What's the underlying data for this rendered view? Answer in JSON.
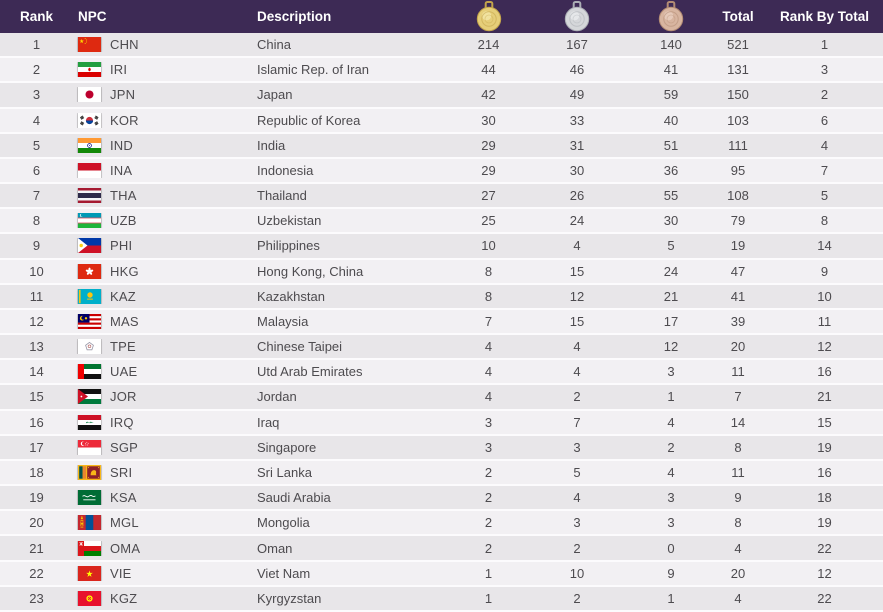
{
  "theme": {
    "header_bg": "#3d2a55",
    "header_text": "#ffffff",
    "row_odd_bg": "#e8e6e9",
    "row_even_bg": "#f2f0f3",
    "row_separator": "#fcfbfd",
    "text_color": "#4d4b4f",
    "medals": {
      "gold": {
        "body": "#e6ce79",
        "ring": "#c3a44b",
        "hi": "#f8ecb4"
      },
      "silver": {
        "body": "#d5d7da",
        "ring": "#abaeb4",
        "hi": "#f0f1f3"
      },
      "bronze": {
        "body": "#d8b5a0",
        "ring": "#b38c74",
        "hi": "#eed6c7"
      }
    }
  },
  "table": {
    "header": {
      "rank": "Rank",
      "npc": "NPC",
      "description": "Description",
      "gold_icon": "gold-medal-icon",
      "silver_icon": "silver-medal-icon",
      "bronze_icon": "bronze-medal-icon",
      "total": "Total",
      "rank_by_total": "Rank By Total"
    },
    "rows": [
      {
        "rank": 1,
        "npc": "CHN",
        "flag_icon": "flag-chn-icon",
        "description": "China",
        "gold": 214,
        "silver": 167,
        "bronze": 140,
        "total": 521,
        "rank_by_total": 1
      },
      {
        "rank": 2,
        "npc": "IRI",
        "flag_icon": "flag-iri-icon",
        "description": "Islamic Rep. of Iran",
        "gold": 44,
        "silver": 46,
        "bronze": 41,
        "total": 131,
        "rank_by_total": 3
      },
      {
        "rank": 3,
        "npc": "JPN",
        "flag_icon": "flag-jpn-icon",
        "description": "Japan",
        "gold": 42,
        "silver": 49,
        "bronze": 59,
        "total": 150,
        "rank_by_total": 2
      },
      {
        "rank": 4,
        "npc": "KOR",
        "flag_icon": "flag-kor-icon",
        "description": "Republic of Korea",
        "gold": 30,
        "silver": 33,
        "bronze": 40,
        "total": 103,
        "rank_by_total": 6
      },
      {
        "rank": 5,
        "npc": "IND",
        "flag_icon": "flag-ind-icon",
        "description": "India",
        "gold": 29,
        "silver": 31,
        "bronze": 51,
        "total": 111,
        "rank_by_total": 4
      },
      {
        "rank": 6,
        "npc": "INA",
        "flag_icon": "flag-ina-icon",
        "description": "Indonesia",
        "gold": 29,
        "silver": 30,
        "bronze": 36,
        "total": 95,
        "rank_by_total": 7
      },
      {
        "rank": 7,
        "npc": "THA",
        "flag_icon": "flag-tha-icon",
        "description": "Thailand",
        "gold": 27,
        "silver": 26,
        "bronze": 55,
        "total": 108,
        "rank_by_total": 5
      },
      {
        "rank": 8,
        "npc": "UZB",
        "flag_icon": "flag-uzb-icon",
        "description": "Uzbekistan",
        "gold": 25,
        "silver": 24,
        "bronze": 30,
        "total": 79,
        "rank_by_total": 8
      },
      {
        "rank": 9,
        "npc": "PHI",
        "flag_icon": "flag-phi-icon",
        "description": "Philippines",
        "gold": 10,
        "silver": 4,
        "bronze": 5,
        "total": 19,
        "rank_by_total": 14
      },
      {
        "rank": 10,
        "npc": "HKG",
        "flag_icon": "flag-hkg-icon",
        "description": "Hong Kong, China",
        "gold": 8,
        "silver": 15,
        "bronze": 24,
        "total": 47,
        "rank_by_total": 9
      },
      {
        "rank": 11,
        "npc": "KAZ",
        "flag_icon": "flag-kaz-icon",
        "description": "Kazakhstan",
        "gold": 8,
        "silver": 12,
        "bronze": 21,
        "total": 41,
        "rank_by_total": 10
      },
      {
        "rank": 12,
        "npc": "MAS",
        "flag_icon": "flag-mas-icon",
        "description": "Malaysia",
        "gold": 7,
        "silver": 15,
        "bronze": 17,
        "total": 39,
        "rank_by_total": 11
      },
      {
        "rank": 13,
        "npc": "TPE",
        "flag_icon": "flag-tpe-icon",
        "description": "Chinese Taipei",
        "gold": 4,
        "silver": 4,
        "bronze": 12,
        "total": 20,
        "rank_by_total": 12
      },
      {
        "rank": 14,
        "npc": "UAE",
        "flag_icon": "flag-uae-icon",
        "description": "Utd Arab Emirates",
        "gold": 4,
        "silver": 4,
        "bronze": 3,
        "total": 11,
        "rank_by_total": 16
      },
      {
        "rank": 15,
        "npc": "JOR",
        "flag_icon": "flag-jor-icon",
        "description": "Jordan",
        "gold": 4,
        "silver": 2,
        "bronze": 1,
        "total": 7,
        "rank_by_total": 21
      },
      {
        "rank": 16,
        "npc": "IRQ",
        "flag_icon": "flag-irq-icon",
        "description": "Iraq",
        "gold": 3,
        "silver": 7,
        "bronze": 4,
        "total": 14,
        "rank_by_total": 15
      },
      {
        "rank": 17,
        "npc": "SGP",
        "flag_icon": "flag-sgp-icon",
        "description": "Singapore",
        "gold": 3,
        "silver": 3,
        "bronze": 2,
        "total": 8,
        "rank_by_total": 19
      },
      {
        "rank": 18,
        "npc": "SRI",
        "flag_icon": "flag-sri-icon",
        "description": "Sri Lanka",
        "gold": 2,
        "silver": 5,
        "bronze": 4,
        "total": 11,
        "rank_by_total": 16
      },
      {
        "rank": 19,
        "npc": "KSA",
        "flag_icon": "flag-ksa-icon",
        "description": "Saudi Arabia",
        "gold": 2,
        "silver": 4,
        "bronze": 3,
        "total": 9,
        "rank_by_total": 18
      },
      {
        "rank": 20,
        "npc": "MGL",
        "flag_icon": "flag-mgl-icon",
        "description": "Mongolia",
        "gold": 2,
        "silver": 3,
        "bronze": 3,
        "total": 8,
        "rank_by_total": 19
      },
      {
        "rank": 21,
        "npc": "OMA",
        "flag_icon": "flag-oma-icon",
        "description": "Oman",
        "gold": 2,
        "silver": 2,
        "bronze": 0,
        "total": 4,
        "rank_by_total": 22
      },
      {
        "rank": 22,
        "npc": "VIE",
        "flag_icon": "flag-vie-icon",
        "description": "Viet Nam",
        "gold": 1,
        "silver": 10,
        "bronze": 9,
        "total": 20,
        "rank_by_total": 12
      },
      {
        "rank": 23,
        "npc": "KGZ",
        "flag_icon": "flag-kgz-icon",
        "description": "Kyrgyzstan",
        "gold": 1,
        "silver": 2,
        "bronze": 1,
        "total": 4,
        "rank_by_total": 22
      }
    ]
  }
}
